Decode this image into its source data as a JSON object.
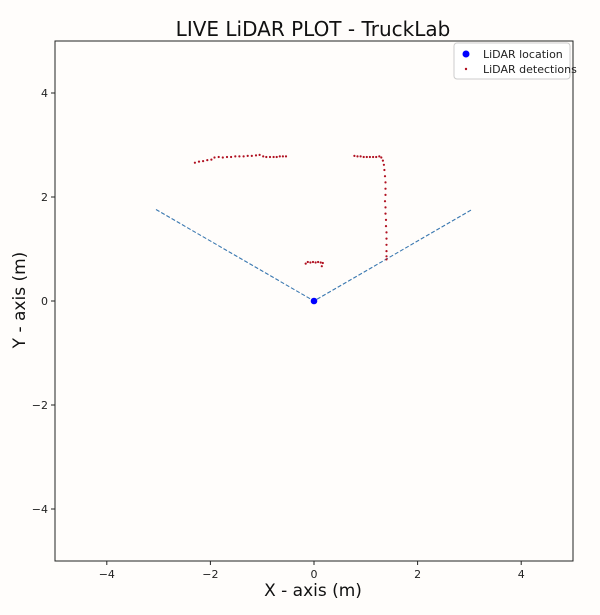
{
  "chart_data": {
    "type": "scatter",
    "title": "LIVE LiDAR PLOT - TruckLab",
    "xlabel": "X - axis (m)",
    "ylabel": "Y - axis (m)",
    "xlim": [
      -5,
      5
    ],
    "ylim": [
      -5,
      5
    ],
    "xticks": [
      -4,
      -2,
      0,
      2,
      4
    ],
    "yticks": [
      -4,
      -2,
      0,
      2,
      4
    ],
    "grid": false,
    "legend_position": "top-right",
    "colors": {
      "lidar_location": "#0000ff",
      "lidar_detections": "#b01020",
      "fov_lines": "#3a78b0",
      "frame": "#222222"
    },
    "series": [
      {
        "name": "LiDAR location",
        "marker": "large-dot",
        "points": [
          [
            0,
            0
          ]
        ]
      },
      {
        "name": "LiDAR detections",
        "marker": "small-dot",
        "points": [
          [
            -2.3,
            2.66
          ],
          [
            -2.22,
            2.68
          ],
          [
            -2.14,
            2.69
          ],
          [
            -2.06,
            2.71
          ],
          [
            -1.98,
            2.72
          ],
          [
            -1.92,
            2.76
          ],
          [
            -1.84,
            2.77
          ],
          [
            -1.76,
            2.76
          ],
          [
            -1.68,
            2.77
          ],
          [
            -1.6,
            2.77
          ],
          [
            -1.52,
            2.78
          ],
          [
            -1.44,
            2.78
          ],
          [
            -1.36,
            2.78
          ],
          [
            -1.28,
            2.79
          ],
          [
            -1.2,
            2.79
          ],
          [
            -1.12,
            2.8
          ],
          [
            -1.05,
            2.81
          ],
          [
            -0.98,
            2.78
          ],
          [
            -0.92,
            2.77
          ],
          [
            -0.85,
            2.77
          ],
          [
            -0.78,
            2.77
          ],
          [
            -0.72,
            2.77
          ],
          [
            -0.66,
            2.78
          ],
          [
            -0.6,
            2.78
          ],
          [
            -0.54,
            2.78
          ],
          [
            -0.16,
            0.72
          ],
          [
            -0.12,
            0.75
          ],
          [
            -0.07,
            0.74
          ],
          [
            -0.02,
            0.75
          ],
          [
            0.03,
            0.74
          ],
          [
            0.08,
            0.75
          ],
          [
            0.13,
            0.74
          ],
          [
            0.17,
            0.73
          ],
          [
            0.15,
            0.67
          ],
          [
            0.78,
            2.79
          ],
          [
            0.84,
            2.78
          ],
          [
            0.9,
            2.78
          ],
          [
            0.96,
            2.77
          ],
          [
            1.02,
            2.77
          ],
          [
            1.08,
            2.77
          ],
          [
            1.14,
            2.77
          ],
          [
            1.2,
            2.77
          ],
          [
            1.26,
            2.78
          ],
          [
            1.3,
            2.76
          ],
          [
            1.33,
            2.7
          ],
          [
            1.35,
            2.62
          ],
          [
            1.36,
            2.52
          ],
          [
            1.37,
            2.4
          ],
          [
            1.38,
            2.28
          ],
          [
            1.38,
            2.16
          ],
          [
            1.38,
            2.04
          ],
          [
            1.37,
            1.92
          ],
          [
            1.38,
            1.8
          ],
          [
            1.38,
            1.68
          ],
          [
            1.39,
            1.56
          ],
          [
            1.39,
            1.44
          ],
          [
            1.4,
            1.32
          ],
          [
            1.4,
            1.2
          ],
          [
            1.4,
            1.08
          ],
          [
            1.4,
            0.96
          ],
          [
            1.4,
            0.86
          ],
          [
            1.4,
            0.8
          ]
        ]
      }
    ],
    "reference_lines": [
      {
        "style": "dashed",
        "points": [
          [
            -3.05,
            1.76
          ],
          [
            0,
            0
          ],
          [
            3.05,
            1.76
          ]
        ]
      }
    ]
  }
}
